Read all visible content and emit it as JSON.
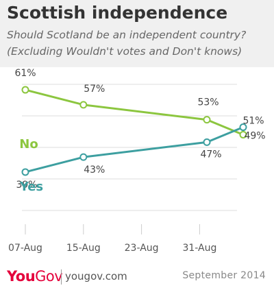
{
  "header": {
    "title": "Scottish independence",
    "subtitle_line1": "Should Scotland be an independent country?",
    "subtitle_line2": "(Excluding Wouldn't votes and Don't knows)"
  },
  "chart_data": {
    "type": "line",
    "x_tick_labels": [
      "07-Aug",
      "15-Aug",
      "23-Aug",
      "31-Aug"
    ],
    "x_tick_days": [
      7,
      15,
      23,
      31
    ],
    "ylim": [
      30,
      70
    ],
    "grid": true,
    "series": [
      {
        "name": "No",
        "color": "#8cc63f",
        "x_days": [
          7,
          15,
          32,
          37
        ],
        "values": [
          61,
          57,
          53,
          49
        ],
        "labels": [
          "61%",
          "57%",
          "53%",
          "49%"
        ]
      },
      {
        "name": "Yes",
        "color": "#3d9fa0",
        "x_days": [
          7,
          15,
          32,
          37
        ],
        "values": [
          39,
          43,
          47,
          51
        ],
        "labels": [
          "39%",
          "43%",
          "47%",
          "51%"
        ]
      }
    ]
  },
  "footer": {
    "logo_you": "You",
    "logo_gov": "Gov",
    "site": "yougov.com",
    "date": "September 2014"
  }
}
